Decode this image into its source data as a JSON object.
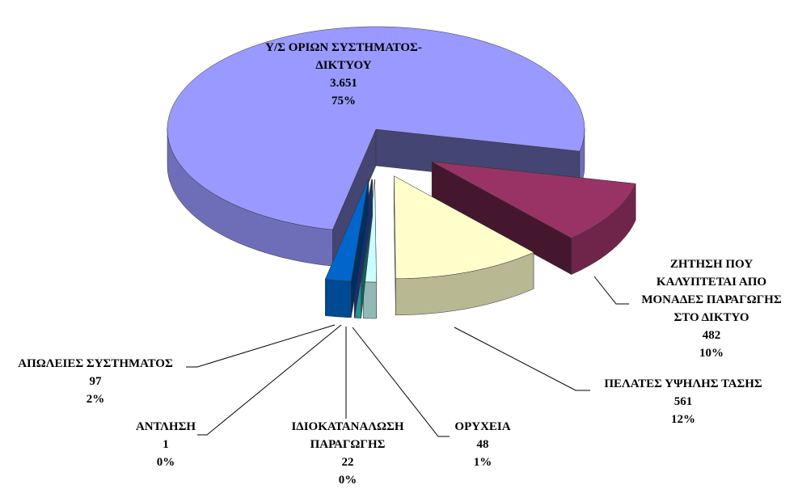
{
  "chart_data": {
    "type": "pie",
    "categories": [
      "Υ/Σ ΟΡΙΩΝ ΣΥΣΤΗΜΑΤΟΣ-ΔΙΚΤΥΟΥ",
      "ΖΗΤΗΣΗ ΠΟΥ ΚΑΛΥΠΤΕΤΑΙ ΑΠΟ ΜΟΝΑΔΕΣ ΠΑΡΑΓΩΓΗΣ ΣΤΟ ΔΙΚΤΥΟ",
      "ΠΕΛΑΤΕΣ ΥΨΗΛΗΣ ΤΑΣΗΣ",
      "ΟΡΥΧΕΙΑ",
      "ΙΔΙΟΚΑΤΑΝΑΛΩΣΗ ΠΑΡΑΓΩΓΗΣ",
      "ΑΝΤΛΗΣΗ",
      "ΑΠΩΛΕΙΕΣ ΣΥΣΤΗΜΑΤΟΣ"
    ],
    "values": [
      3651,
      482,
      561,
      48,
      22,
      1,
      97
    ],
    "value_labels": [
      "3.651",
      "482",
      "561",
      "48",
      "22",
      "1",
      "97"
    ],
    "percentages": [
      75,
      10,
      12,
      1,
      0,
      0,
      2
    ],
    "percentage_labels": [
      "75%",
      "10%",
      "12%",
      "1%",
      "0%",
      "0%",
      "2%"
    ],
    "colors": [
      "#9999ff",
      "#993366",
      "#ffffcc",
      "#ccffff",
      "#33cccc",
      "#3366ff",
      "#0066cc"
    ]
  }
}
